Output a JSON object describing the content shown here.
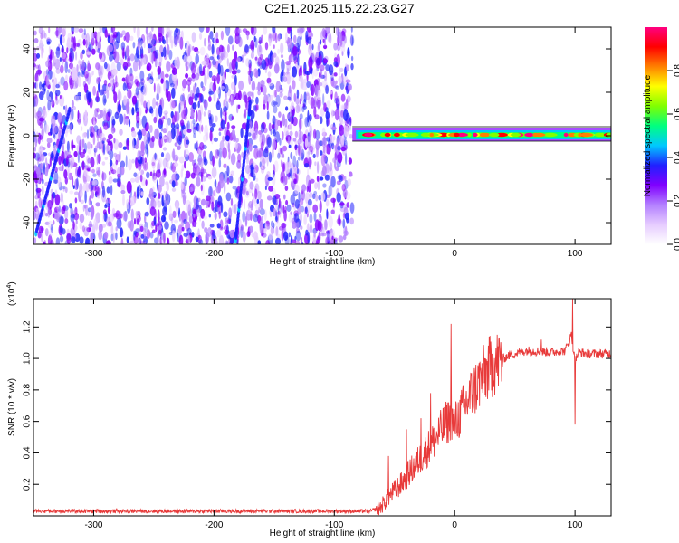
{
  "title": "C2E1.2025.115.22.23.G27",
  "chart_data": [
    {
      "type": "heatmap",
      "xlabel": "Height of straight line (km)",
      "ylabel": "Frequency (Hz)",
      "xlim": [
        -350,
        130
      ],
      "ylim": [
        -50,
        50
      ],
      "x_ticks": [
        -300,
        -200,
        -100,
        0,
        100
      ],
      "y_ticks": [
        -40,
        -20,
        0,
        20,
        40
      ],
      "colorbar": {
        "label": "Normalized spectral amplitude",
        "range": [
          0,
          1
        ],
        "ticks": [
          "0.0",
          "0.2",
          "0.4",
          "0.6",
          "0.8"
        ],
        "colors": [
          "#ffffff",
          "#e6ccff",
          "#b380ff",
          "#8000ff",
          "#2020ff",
          "#00c8ff",
          "#00ff80",
          "#80ff00",
          "#ffff00",
          "#ff8000",
          "#ff0000",
          "#ff0080"
        ]
      },
      "features": {
        "noise_region_x": [
          -350,
          -85
        ],
        "signal_band_x": [
          -85,
          130
        ],
        "signal_band_freq": 0,
        "streaks": [
          {
            "x0": -348,
            "y0": -45,
            "x1": -320,
            "y1": 12
          },
          {
            "x0": -182,
            "y0": -48,
            "x1": -170,
            "y1": 15
          }
        ]
      }
    },
    {
      "type": "line",
      "xlabel": "Height of straight line (km)",
      "ylabel": "SNR (10 * v/v)",
      "scale_label": "(x10",
      "scale_exp": "4",
      "scale_close": ")",
      "xlim": [
        -350,
        130
      ],
      "ylim": [
        0,
        1.38
      ],
      "x_ticks": [
        -300,
        -200,
        -100,
        0,
        100
      ],
      "y_ticks": [
        "0.2",
        "0.4",
        "0.6",
        "0.8",
        "1.0",
        "1.2"
      ],
      "line_color": "#e83a3a",
      "series": [
        {
          "x": [
            -350,
            -300,
            -250,
            -200,
            -150,
            -100,
            -70,
            -62,
            -55,
            -45,
            -35,
            -25,
            -15,
            -8,
            -3,
            0,
            10,
            20,
            30,
            45,
            60,
            80,
            92,
            97,
            100,
            103,
            110,
            130
          ],
          "y": [
            0.03,
            0.03,
            0.03,
            0.03,
            0.03,
            0.03,
            0.03,
            0.05,
            0.12,
            0.2,
            0.3,
            0.4,
            0.5,
            0.58,
            0.62,
            0.58,
            0.72,
            0.85,
            0.95,
            1.02,
            1.05,
            1.04,
            1.05,
            1.15,
            0.98,
            1.04,
            1.03,
            1.03
          ],
          "spikes": [
            {
              "x": -55,
              "y": 0.38
            },
            {
              "x": -40,
              "y": 0.55
            },
            {
              "x": -28,
              "y": 0.62
            },
            {
              "x": -20,
              "y": 0.78
            },
            {
              "x": -3,
              "y": 1.22
            },
            {
              "x": 98,
              "y": 1.38
            },
            {
              "x": 100,
              "y": 0.58
            },
            {
              "x": 72,
              "y": 1.12
            }
          ]
        }
      ]
    }
  ]
}
